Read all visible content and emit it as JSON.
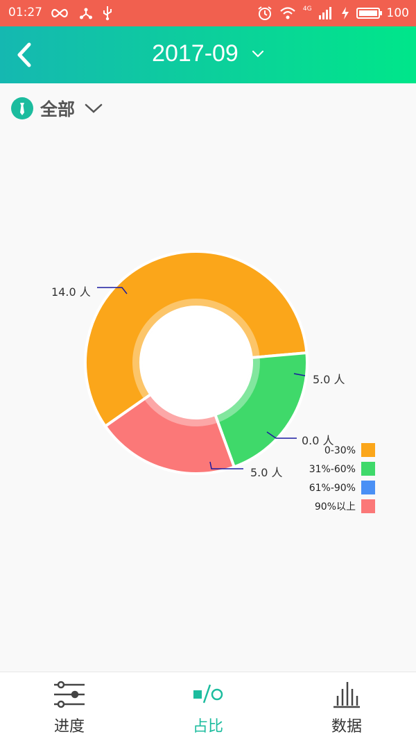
{
  "status_bar": {
    "time": "01:27",
    "network": "4G",
    "battery": "100"
  },
  "header": {
    "title": "2017-09",
    "back_icon": "chevron-left-icon",
    "dropdown_icon": "chevron-down-icon"
  },
  "filter": {
    "label": "全部",
    "icon": "tie-icon"
  },
  "colors": {
    "status_bar": "#f1604f",
    "header_start": "#15b8b1",
    "header_end": "#00e68a",
    "accent": "#1cbc9e"
  },
  "chart_data": {
    "type": "pie",
    "donut": true,
    "categories": [
      "0-30%",
      "31%-60%",
      "61%-90%",
      "90%以上"
    ],
    "values": [
      14.0,
      5.0,
      0.0,
      5.0
    ],
    "labels": [
      "14.0 人",
      "5.0 人",
      "0.0 人",
      "5.0 人"
    ],
    "colors": [
      "#fba61a",
      "#3fd96a",
      "#4a90f5",
      "#fb7878"
    ],
    "legend_position": "bottom-right",
    "title": ""
  },
  "bottom_nav": {
    "items": [
      {
        "label": "进度",
        "icon": "sliders-icon",
        "active": false
      },
      {
        "label": "占比",
        "icon": "square-slash-circle-icon",
        "active": true
      },
      {
        "label": "数据",
        "icon": "bar-chart-icon",
        "active": false
      }
    ]
  }
}
